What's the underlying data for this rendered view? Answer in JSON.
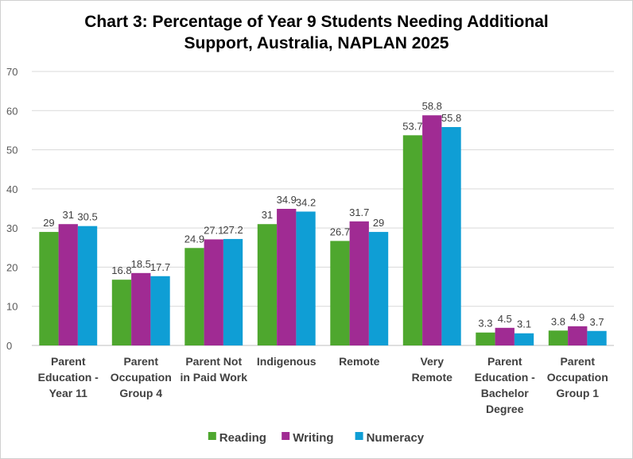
{
  "chart_data": {
    "type": "bar",
    "title_lines": [
      "Chart 3: Percentage of Year 9 Students Needing Additional",
      "Support, Australia, NAPLAN 2025"
    ],
    "categories": [
      [
        "Parent",
        "Education -",
        "Year 11"
      ],
      [
        "Parent",
        "Occupation",
        "Group 4"
      ],
      [
        "Parent Not",
        "in Paid Work"
      ],
      [
        "Indigenous"
      ],
      [
        "Remote"
      ],
      [
        "Very",
        "Remote"
      ],
      [
        "Parent",
        "Education -",
        "Bachelor",
        "Degree"
      ],
      [
        "Parent",
        "Occupation",
        "Group 1"
      ]
    ],
    "series": [
      {
        "name": "Reading",
        "color": "#4ea72e",
        "values": [
          29,
          16.8,
          24.9,
          31,
          26.7,
          53.7,
          3.3,
          3.8
        ]
      },
      {
        "name": "Writing",
        "color": "#a02b93",
        "values": [
          31,
          18.5,
          27.1,
          34.9,
          31.7,
          58.8,
          4.5,
          4.9
        ]
      },
      {
        "name": "Numeracy",
        "color": "#0f9ed5",
        "values": [
          30.5,
          17.7,
          27.2,
          34.2,
          29,
          55.8,
          3.1,
          3.7
        ]
      }
    ],
    "ylim": [
      0,
      70
    ],
    "yticks": [
      0,
      10,
      20,
      30,
      40,
      50,
      60,
      70
    ],
    "grid": true,
    "legend": "bottom"
  }
}
